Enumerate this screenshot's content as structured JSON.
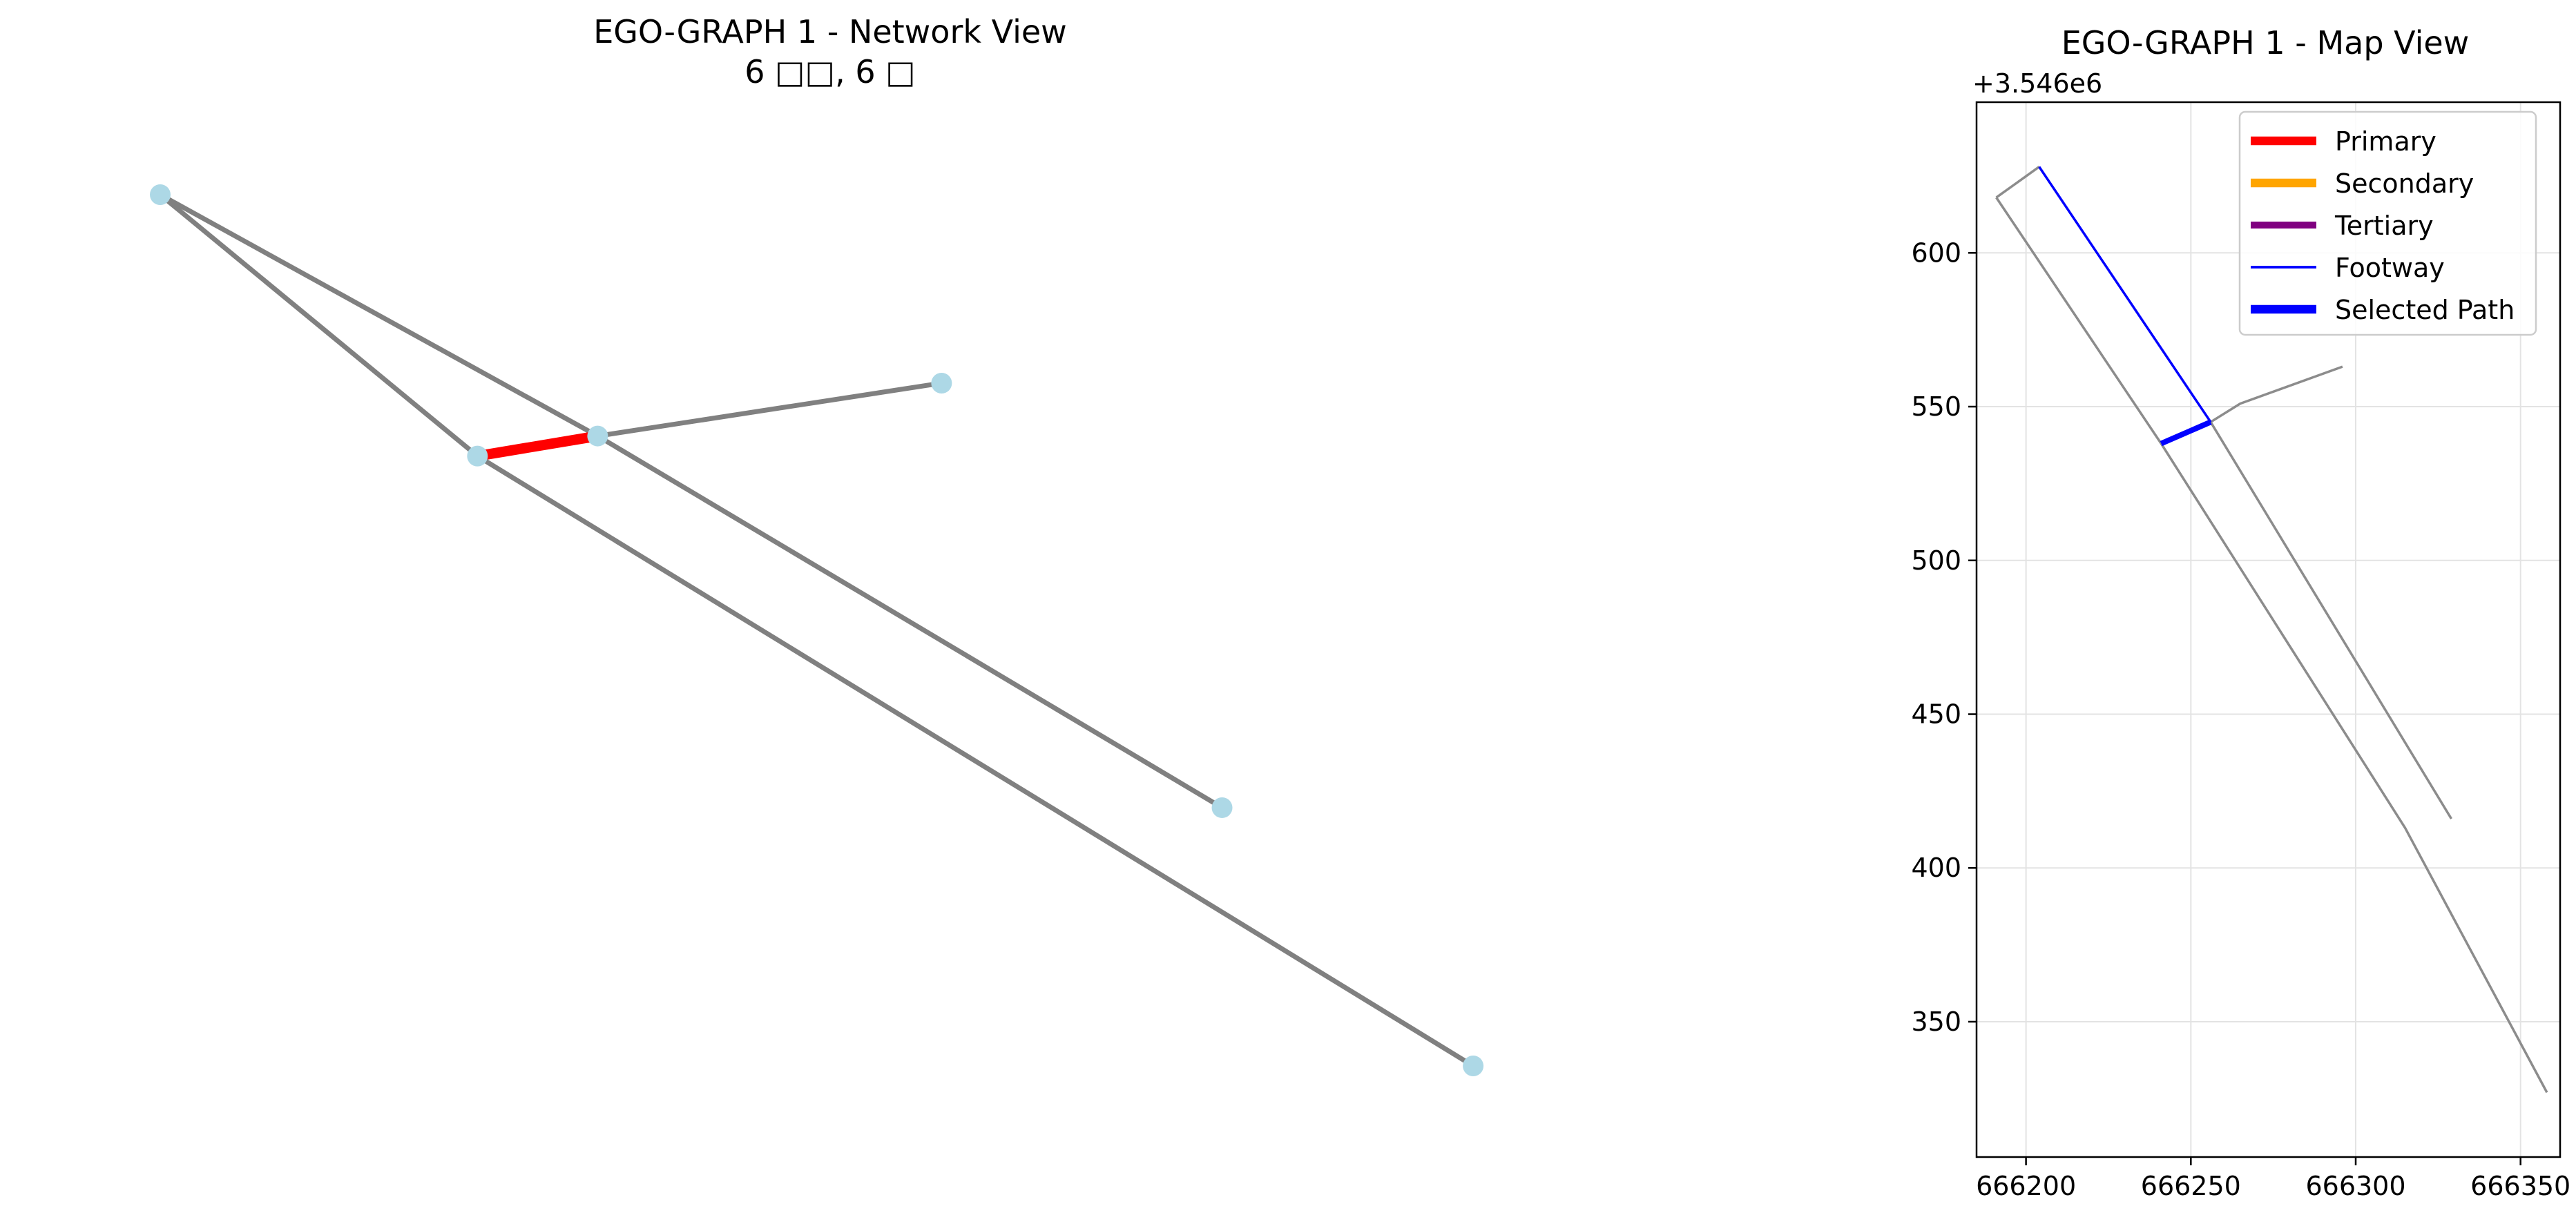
{
  "chart_data": [
    {
      "type": "network",
      "title": "EGO-GRAPH 1 - Network View",
      "subtitle": "6 □□, 6 □",
      "colors": {
        "node": "#add8e6",
        "edge": "#808080",
        "highlight": "#ff0000"
      },
      "nodes": [
        {
          "id": "n1",
          "x": 0.0,
          "y": 0.0
        },
        {
          "id": "n2",
          "x": 0.2375,
          "y": 0.3
        },
        {
          "id": "n3",
          "x": 0.3275,
          "y": 0.277
        },
        {
          "id": "n4",
          "x": 0.585,
          "y": 0.2163
        },
        {
          "id": "n5",
          "x": 0.795,
          "y": 0.7036
        },
        {
          "id": "n6",
          "x": 0.983,
          "y": 1.0
        }
      ],
      "edges": [
        {
          "source": "n1",
          "target": "n2",
          "highlight": false
        },
        {
          "source": "n1",
          "target": "n3",
          "highlight": false
        },
        {
          "source": "n2",
          "target": "n3",
          "highlight": true
        },
        {
          "source": "n3",
          "target": "n4",
          "highlight": false
        },
        {
          "source": "n3",
          "target": "n5",
          "highlight": false
        },
        {
          "source": "n2",
          "target": "n6",
          "highlight": false
        }
      ]
    },
    {
      "type": "line",
      "title": "EGO-GRAPH 1 - Map View",
      "y_offset_label": "+3.546e6",
      "xlim": [
        666185,
        666362
      ],
      "ylim": [
        306,
        649
      ],
      "xticks": [
        666200,
        666250,
        666300,
        666350
      ],
      "yticks": [
        350,
        400,
        450,
        500,
        550,
        600
      ],
      "grid": true,
      "legend_position": "upper-right",
      "legend": [
        {
          "name": "Primary",
          "color": "#ff0000",
          "width": 5
        },
        {
          "name": "Secondary",
          "color": "#ffa500",
          "width": 5
        },
        {
          "name": "Tertiary",
          "color": "#800080",
          "width": 4
        },
        {
          "name": "Footway",
          "color": "#0000ff",
          "width": 1.5
        },
        {
          "name": "Selected Path",
          "color": "#0000ff",
          "width": 5
        }
      ],
      "series": [
        {
          "kind": "road",
          "color": "#8c8c8c",
          "width": 1.4,
          "points": [
            [
              666191,
              618
            ],
            [
              666241,
              538
            ],
            [
              666315,
              413
            ],
            [
              666358,
              327
            ]
          ]
        },
        {
          "kind": "road",
          "color": "#8c8c8c",
          "width": 1.4,
          "points": [
            [
              666191,
              618
            ],
            [
              666204,
              628
            ]
          ]
        },
        {
          "kind": "road",
          "color": "#8c8c8c",
          "width": 1.4,
          "points": [
            [
              666256,
              545
            ],
            [
              666329,
              416
            ]
          ]
        },
        {
          "kind": "road",
          "color": "#8c8c8c",
          "width": 1.4,
          "points": [
            [
              666256,
              545
            ],
            [
              666265,
              551
            ],
            [
              666296,
              563
            ]
          ]
        },
        {
          "kind": "footway",
          "color": "#0000ff",
          "width": 1.4,
          "points": [
            [
              666204,
              628
            ],
            [
              666256,
              545
            ]
          ]
        },
        {
          "kind": "selected",
          "color": "#0000ff",
          "width": 3.2,
          "points": [
            [
              666241,
              538
            ],
            [
              666256,
              545
            ]
          ]
        }
      ]
    }
  ]
}
